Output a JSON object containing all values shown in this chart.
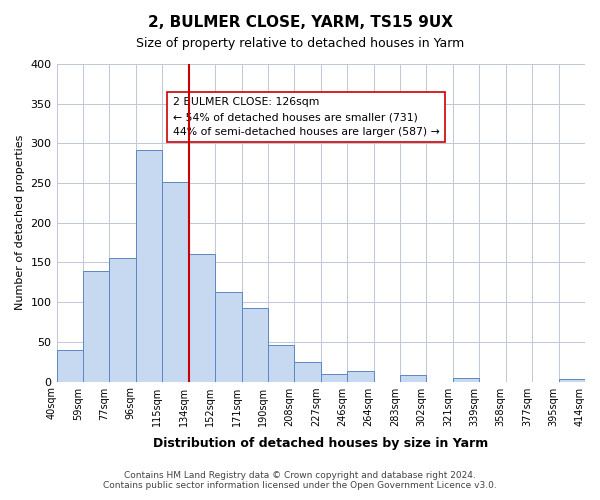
{
  "title": "2, BULMER CLOSE, YARM, TS15 9UX",
  "subtitle": "Size of property relative to detached houses in Yarm",
  "xlabel": "Distribution of detached houses by size in Yarm",
  "ylabel": "Number of detached properties",
  "bar_color": "#c6d9f1",
  "bar_edge_color": "#5b87c5",
  "tick_labels": [
    "40sqm",
    "59sqm",
    "77sqm",
    "96sqm",
    "115sqm",
    "134sqm",
    "152sqm",
    "171sqm",
    "190sqm",
    "208sqm",
    "227sqm",
    "246sqm",
    "264sqm",
    "283sqm",
    "302sqm",
    "321sqm",
    "339sqm",
    "358sqm",
    "377sqm",
    "395sqm",
    "414sqm"
  ],
  "bar_heights": [
    40,
    139,
    155,
    292,
    251,
    161,
    113,
    92,
    46,
    25,
    10,
    13,
    0,
    8,
    0,
    5,
    0,
    0,
    0,
    3
  ],
  "ylim": [
    0,
    400
  ],
  "yticks": [
    0,
    50,
    100,
    150,
    200,
    250,
    300,
    350,
    400
  ],
  "vline_x": 5,
  "vline_color": "#cc0000",
  "annotation_title": "2 BULMER CLOSE: 126sqm",
  "annotation_line1": "← 54% of detached houses are smaller (731)",
  "annotation_line2": "44% of semi-detached houses are larger (587) →",
  "footnote1": "Contains HM Land Registry data © Crown copyright and database right 2024.",
  "footnote2": "Contains public sector information licensed under the Open Government Licence v3.0.",
  "bg_color": "#ffffff",
  "grid_color": "#c0c8d8"
}
